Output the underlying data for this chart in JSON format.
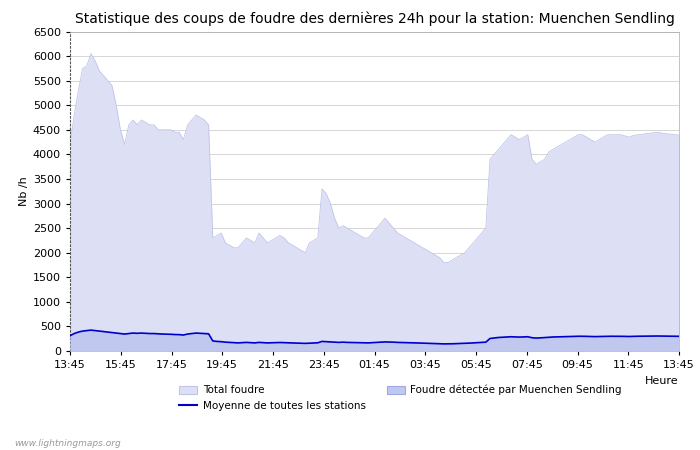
{
  "title": "Statistique des coups de foudre des dernières 24h pour la station: Muenchen Sendling",
  "xlabel": "Heure",
  "ylabel": "Nb /h",
  "watermark": "www.lightningmaps.org",
  "ylim": [
    0,
    6500
  ],
  "yticks": [
    0,
    500,
    1000,
    1500,
    2000,
    2500,
    3000,
    3500,
    4000,
    4500,
    5000,
    5500,
    6000,
    6500
  ],
  "xtick_labels": [
    "13:45",
    "15:45",
    "17:45",
    "19:45",
    "21:45",
    "23:45",
    "01:45",
    "03:45",
    "05:45",
    "07:45",
    "09:45",
    "11:45",
    "13:45"
  ],
  "bg_color": "#ffffff",
  "plot_bg_color": "#f8f8ff",
  "grid_color": "#d0d0d0",
  "total_foudre_color": "#dde0f5",
  "total_foudre_edge": "#c0c4e8",
  "foudre_muenchen_color": "#c0c8f0",
  "foudre_muenchen_edge": "#a0a8e0",
  "mean_line_color": "#0000cc",
  "title_fontsize": 10,
  "label_fontsize": 8,
  "tick_fontsize": 8,
  "total_foudre": [
    4200,
    4800,
    5300,
    5750,
    5800,
    6050,
    5900,
    5700,
    5600,
    5500,
    5400,
    5000,
    4500,
    4200,
    4600,
    4700,
    4600,
    4700,
    4650,
    4600,
    4600,
    4500,
    4500,
    4500,
    4500,
    4450,
    4450,
    4300,
    4600,
    4700,
    4800,
    4750,
    4700,
    4600,
    2300,
    2350,
    2400,
    2200,
    2150,
    2100,
    2100,
    2200,
    2300,
    2250,
    2200,
    2400,
    2300,
    2200,
    2250,
    2300,
    2350,
    2300,
    2200,
    2150,
    2100,
    2050,
    2000,
    2200,
    2250,
    2300,
    3300,
    3200,
    3000,
    2700,
    2500,
    2550,
    2500,
    2450,
    2400,
    2350,
    2300,
    2300,
    2400,
    2500,
    2600,
    2700,
    2600,
    2500,
    2400,
    2350,
    2300,
    2250,
    2200,
    2150,
    2100,
    2050,
    2000,
    1950,
    1900,
    1800,
    1800,
    1850,
    1900,
    1950,
    2000,
    2100,
    2200,
    2300,
    2400,
    2500,
    3900,
    4000,
    4100,
    4200,
    4300,
    4400,
    4350,
    4300,
    4350,
    4400,
    3900,
    3800,
    3850,
    3900,
    4050,
    4100,
    4150,
    4200,
    4250,
    4300,
    4350,
    4400,
    4400,
    4350,
    4300,
    4250,
    4300,
    4350,
    4400,
    4400,
    4400,
    4400,
    4380,
    4350,
    4380,
    4400,
    4400,
    4420,
    4430,
    4440,
    4450,
    4430,
    4420,
    4410,
    4400,
    4390
  ],
  "foudre_muenchen": [
    300,
    350,
    380,
    400,
    410,
    420,
    410,
    400,
    390,
    380,
    370,
    360,
    350,
    340,
    350,
    360,
    355,
    360,
    355,
    350,
    350,
    345,
    340,
    338,
    335,
    330,
    328,
    320,
    340,
    350,
    360,
    355,
    350,
    345,
    200,
    190,
    185,
    175,
    170,
    165,
    160,
    165,
    170,
    165,
    160,
    170,
    165,
    160,
    162,
    165,
    168,
    165,
    162,
    158,
    155,
    152,
    150,
    155,
    158,
    162,
    190,
    185,
    180,
    175,
    170,
    175,
    170,
    168,
    165,
    162,
    160,
    160,
    165,
    170,
    175,
    180,
    178,
    175,
    170,
    168,
    165,
    162,
    160,
    158,
    155,
    152,
    150,
    148,
    145,
    140,
    140,
    142,
    145,
    148,
    150,
    155,
    160,
    165,
    170,
    175,
    250,
    260,
    270,
    275,
    280,
    285,
    282,
    278,
    282,
    285,
    265,
    258,
    262,
    268,
    275,
    280,
    282,
    285,
    288,
    290,
    292,
    295,
    295,
    292,
    290,
    288,
    290,
    292,
    295,
    295,
    295,
    295,
    293,
    290,
    293,
    295,
    295,
    297,
    298,
    299,
    300,
    298,
    297,
    296,
    295,
    294
  ],
  "mean_line": [
    310,
    355,
    385,
    405,
    415,
    425,
    415,
    405,
    395,
    385,
    375,
    365,
    355,
    345,
    355,
    365,
    360,
    365,
    360,
    355,
    355,
    350,
    345,
    343,
    340,
    335,
    333,
    325,
    345,
    355,
    365,
    360,
    355,
    350,
    205,
    195,
    190,
    180,
    175,
    170,
    165,
    170,
    175,
    170,
    165,
    175,
    170,
    165,
    167,
    170,
    173,
    170,
    167,
    163,
    160,
    157,
    155,
    160,
    163,
    167,
    195,
    190,
    185,
    180,
    175,
    180,
    175,
    173,
    170,
    167,
    165,
    165,
    170,
    175,
    180,
    185,
    183,
    180,
    175,
    173,
    170,
    167,
    165,
    163,
    160,
    157,
    155,
    153,
    150,
    145,
    145,
    147,
    150,
    153,
    155,
    160,
    165,
    170,
    175,
    180,
    255,
    265,
    275,
    280,
    285,
    290,
    287,
    283,
    287,
    290,
    270,
    263,
    267,
    273,
    280,
    285,
    287,
    290,
    293,
    295,
    297,
    300,
    300,
    297,
    295,
    293,
    295,
    297,
    300,
    300,
    300,
    300,
    298,
    295,
    298,
    300,
    300,
    302,
    303,
    304,
    305,
    303,
    302,
    301,
    300,
    299
  ]
}
